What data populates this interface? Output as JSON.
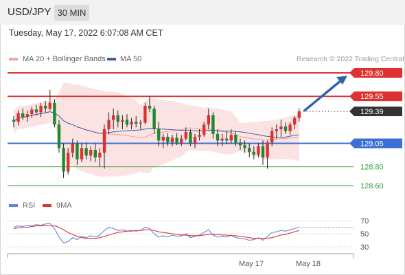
{
  "header": {
    "symbol": "USD/JPY",
    "timeframe": "30 MIN"
  },
  "datetime": "Tuesday, May 17, 2022 6:07:08 AM CET",
  "legend": {
    "main": [
      {
        "label": "MA 20 + Bollinger Bands",
        "color": "#f4a3a3"
      },
      {
        "label": "MA 50",
        "color": "#3f5f99"
      }
    ],
    "copyright": "Research © 2022 Trading Central",
    "rsi": [
      {
        "label": "RSI",
        "color": "#5b86d6"
      },
      {
        "label": "9MA",
        "color": "#e03131"
      }
    ]
  },
  "chart_data": [
    {
      "type": "candlestick",
      "symbol": "USD/JPY",
      "timeframe": "30 MIN",
      "ylim": [
        128.5,
        129.9
      ],
      "levels": [
        {
          "label": "129.80",
          "value": 129.8,
          "role": "resistance",
          "color": "#e03131"
        },
        {
          "label": "129.55",
          "value": 129.55,
          "role": "resistance",
          "color": "#e03131"
        },
        {
          "label": "129.39",
          "value": 129.39,
          "role": "last price",
          "color": "#333333"
        },
        {
          "label": "129.05",
          "value": 129.05,
          "role": "pivot",
          "color": "#3b6fd8"
        },
        {
          "label": "128.80",
          "value": 128.8,
          "role": "support",
          "color": "#2e9e3e"
        },
        {
          "label": "128.60",
          "value": 128.6,
          "role": "support",
          "color": "#2e9e3e"
        }
      ],
      "candles": [
        [
          129.3,
          129.34,
          129.22,
          129.28
        ],
        [
          129.28,
          129.4,
          129.24,
          129.37
        ],
        [
          129.37,
          129.42,
          129.3,
          129.33
        ],
        [
          129.33,
          129.4,
          129.28,
          129.36
        ],
        [
          129.36,
          129.44,
          129.32,
          129.41
        ],
        [
          129.41,
          129.46,
          129.35,
          129.38
        ],
        [
          129.38,
          129.48,
          129.33,
          129.45
        ],
        [
          129.45,
          129.5,
          129.38,
          129.42
        ],
        [
          129.42,
          129.62,
          129.4,
          129.48
        ],
        [
          129.48,
          129.52,
          129.22,
          129.25
        ],
        [
          129.25,
          129.3,
          128.95,
          129.0
        ],
        [
          129.0,
          129.05,
          128.68,
          128.75
        ],
        [
          128.75,
          129.0,
          128.72,
          128.95
        ],
        [
          128.95,
          129.1,
          128.9,
          129.05
        ],
        [
          129.05,
          129.08,
          128.82,
          128.88
        ],
        [
          128.88,
          129.05,
          128.85,
          129.0
        ],
        [
          129.0,
          129.06,
          128.88,
          128.92
        ],
        [
          128.92,
          129.02,
          128.86,
          128.98
        ],
        [
          128.98,
          129.05,
          128.85,
          128.9
        ],
        [
          128.9,
          129.0,
          128.8,
          128.95
        ],
        [
          128.95,
          129.25,
          128.78,
          129.2
        ],
        [
          129.2,
          129.38,
          129.15,
          129.3
        ],
        [
          129.3,
          129.42,
          129.2,
          129.35
        ],
        [
          129.35,
          129.4,
          129.22,
          129.28
        ],
        [
          129.28,
          129.35,
          129.2,
          129.3
        ],
        [
          129.3,
          129.36,
          129.22,
          129.25
        ],
        [
          129.25,
          129.32,
          129.2,
          129.28
        ],
        [
          129.28,
          129.34,
          129.22,
          129.26
        ],
        [
          129.26,
          129.3,
          129.2,
          129.27
        ],
        [
          129.27,
          129.48,
          129.25,
          129.45
        ],
        [
          129.45,
          129.55,
          129.38,
          129.42
        ],
        [
          129.42,
          129.45,
          129.15,
          129.2
        ],
        [
          129.2,
          129.28,
          129.02,
          129.08
        ],
        [
          129.08,
          129.15,
          129.0,
          129.12
        ],
        [
          129.12,
          129.16,
          129.02,
          129.06
        ],
        [
          129.06,
          129.14,
          129.02,
          129.11
        ],
        [
          129.11,
          129.16,
          129.03,
          129.05
        ],
        [
          129.05,
          129.14,
          129.02,
          129.1
        ],
        [
          129.1,
          129.22,
          129.08,
          129.17
        ],
        [
          129.17,
          129.2,
          129.02,
          129.05
        ],
        [
          129.05,
          129.15,
          129.0,
          129.12
        ],
        [
          129.12,
          129.2,
          129.08,
          129.14
        ],
        [
          129.14,
          129.28,
          129.12,
          129.25
        ],
        [
          129.25,
          129.42,
          129.2,
          129.35
        ],
        [
          129.35,
          129.38,
          129.1,
          129.15
        ],
        [
          129.15,
          129.2,
          129.02,
          129.08
        ],
        [
          129.08,
          129.15,
          129.02,
          129.1
        ],
        [
          129.1,
          129.18,
          129.04,
          129.08
        ],
        [
          129.08,
          129.2,
          129.05,
          129.14
        ],
        [
          129.14,
          129.18,
          129.02,
          129.06
        ],
        [
          129.06,
          129.1,
          128.98,
          129.03
        ],
        [
          129.03,
          129.08,
          128.95,
          129.0
        ],
        [
          129.0,
          129.05,
          128.9,
          128.96
        ],
        [
          128.96,
          129.02,
          128.88,
          128.93
        ],
        [
          128.93,
          129.05,
          128.9,
          129.02
        ],
        [
          129.02,
          129.08,
          128.82,
          128.9
        ],
        [
          128.9,
          129.08,
          128.78,
          129.06
        ],
        [
          129.06,
          129.22,
          129.02,
          129.18
        ],
        [
          129.18,
          129.25,
          129.1,
          129.2
        ],
        [
          129.2,
          129.3,
          129.12,
          129.23
        ],
        [
          129.23,
          129.27,
          129.15,
          129.18
        ],
        [
          129.18,
          129.28,
          129.14,
          129.25
        ],
        [
          129.25,
          129.34,
          129.2,
          129.32
        ],
        [
          129.32,
          129.42,
          129.28,
          129.39
        ]
      ]
    },
    {
      "type": "line",
      "indicator": "RSI",
      "ylim": [
        20,
        80
      ],
      "ticks": [
        "70",
        "50",
        "30"
      ],
      "series": [
        {
          "name": "RSI",
          "color": "#5b86d6",
          "values": [
            60,
            62,
            61,
            63,
            62,
            64,
            63,
            65,
            66,
            58,
            45,
            36,
            38,
            44,
            41,
            46,
            44,
            47,
            45,
            48,
            55,
            60,
            58,
            55,
            56,
            54,
            55,
            54,
            55,
            60,
            58,
            50,
            45,
            47,
            45,
            48,
            46,
            47,
            50,
            44,
            46,
            48,
            52,
            56,
            48,
            45,
            46,
            45,
            48,
            44,
            43,
            42,
            40,
            41,
            44,
            40,
            46,
            52,
            53,
            55,
            54,
            56,
            58,
            60
          ]
        },
        {
          "name": "9MA",
          "color": "#e03131",
          "values": [
            58,
            59,
            59,
            60,
            61,
            62,
            62,
            63,
            63,
            62,
            60,
            56,
            52,
            49,
            46,
            44,
            43,
            43,
            43,
            44,
            46,
            48,
            50,
            52,
            53,
            54,
            54,
            55,
            55,
            56,
            56,
            55,
            53,
            52,
            51,
            50,
            49,
            48,
            48,
            47,
            47,
            47,
            48,
            49,
            49,
            49,
            48,
            48,
            47,
            47,
            46,
            45,
            44,
            43,
            43,
            43,
            43,
            44,
            46,
            48,
            49,
            51,
            53,
            55
          ]
        }
      ]
    }
  ],
  "xaxis": {
    "ticks": [
      "May 17",
      "May 18"
    ]
  }
}
